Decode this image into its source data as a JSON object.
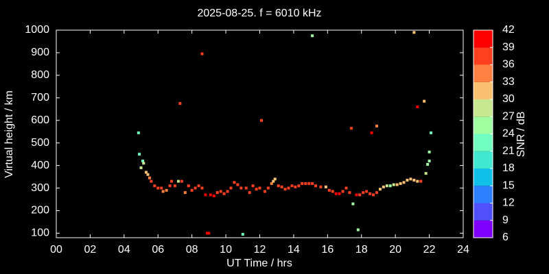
{
  "chart_data": {
    "type": "scatter",
    "title": "2025-08-25. f = 6010 kHz",
    "x_label": "UT Time / hrs",
    "y_label": "Virtual height / km",
    "xlim": [
      0,
      24
    ],
    "xticks": [
      {
        "value": 0,
        "label": "00"
      },
      {
        "value": 2,
        "label": "02"
      },
      {
        "value": 4,
        "label": "04"
      },
      {
        "value": 6,
        "label": "06"
      },
      {
        "value": 8,
        "label": "08"
      },
      10,
      12,
      14,
      16,
      18,
      20,
      22,
      24
    ],
    "ylim": [
      80,
      1000
    ],
    "yticks": [
      100,
      200,
      300,
      400,
      500,
      600,
      700,
      800,
      900,
      1000
    ],
    "colorbar": {
      "label": "SNR / dB",
      "ticks": [
        6,
        9,
        12,
        15,
        18,
        21,
        24,
        27,
        30,
        33,
        36,
        39,
        42
      ],
      "colors": [
        "#8000ff",
        "#5050ff",
        "#2a80ff",
        "#10c0e8",
        "#40e8d0",
        "#70ffc0",
        "#a0ffa0",
        "#c8e890",
        "#f8c070",
        "#ff8040",
        "#ff4020",
        "#ff0000"
      ]
    },
    "x": [
      4.85,
      4.9,
      5.0,
      5.1,
      5.15,
      5.3,
      5.4,
      5.5,
      5.6,
      5.8,
      6.0,
      6.2,
      6.3,
      6.5,
      6.7,
      6.8,
      7.0,
      7.2,
      7.4,
      7.3,
      7.6,
      7.8,
      8.0,
      8.2,
      8.4,
      8.6,
      8.6,
      8.8,
      8.9,
      9.0,
      9.1,
      9.3,
      9.5,
      9.7,
      9.9,
      10.1,
      10.3,
      10.5,
      10.7,
      10.9,
      11.0,
      11.2,
      11.4,
      11.6,
      11.8,
      12.0,
      12.1,
      12.3,
      12.5,
      12.7,
      12.8,
      12.9,
      13.1,
      13.3,
      13.5,
      13.7,
      13.9,
      14.1,
      14.3,
      14.5,
      14.7,
      14.9,
      15.1,
      15.1,
      15.3,
      15.6,
      15.9,
      16.1,
      16.3,
      16.5,
      16.7,
      16.9,
      17.1,
      17.3,
      17.4,
      17.5,
      17.7,
      17.8,
      17.9,
      18.1,
      18.3,
      18.5,
      18.6,
      18.7,
      18.9,
      18.9,
      19.1,
      19.3,
      19.5,
      19.7,
      19.9,
      20.1,
      20.3,
      20.5,
      20.7,
      20.9,
      21.1,
      21.1,
      21.3,
      21.3,
      21.5,
      21.7,
      21.8,
      21.9,
      22.0,
      22.0,
      22.1
    ],
    "values": [
      545,
      450,
      390,
      420,
      410,
      370,
      360,
      345,
      330,
      310,
      300,
      300,
      285,
      290,
      310,
      330,
      310,
      330,
      330,
      675,
      280,
      310,
      290,
      300,
      310,
      300,
      895,
      270,
      100,
      100,
      270,
      265,
      280,
      285,
      275,
      285,
      300,
      325,
      315,
      300,
      95,
      300,
      280,
      310,
      295,
      300,
      600,
      285,
      300,
      320,
      330,
      340,
      310,
      305,
      295,
      300,
      310,
      305,
      310,
      320,
      320,
      320,
      320,
      975,
      310,
      305,
      305,
      290,
      285,
      275,
      275,
      285,
      300,
      280,
      565,
      230,
      270,
      115,
      270,
      280,
      285,
      275,
      545,
      270,
      280,
      575,
      295,
      305,
      310,
      310,
      315,
      315,
      320,
      325,
      335,
      340,
      335,
      990,
      330,
      660,
      330,
      685,
      365,
      405,
      420,
      460,
      545
    ],
    "snr": [
      22,
      22,
      28,
      22,
      28,
      30,
      32,
      34,
      36,
      36,
      38,
      38,
      34,
      33,
      36,
      36,
      38,
      28,
      38,
      36,
      34,
      36,
      38,
      38,
      38,
      38,
      36,
      40,
      40,
      40,
      40,
      40,
      38,
      38,
      38,
      38,
      38,
      38,
      38,
      36,
      22,
      38,
      36,
      38,
      38,
      36,
      36,
      38,
      36,
      34,
      32,
      32,
      38,
      36,
      38,
      38,
      38,
      38,
      38,
      38,
      38,
      38,
      38,
      24,
      38,
      38,
      32,
      38,
      38,
      40,
      40,
      38,
      38,
      38,
      36,
      24,
      40,
      24,
      38,
      38,
      38,
      38,
      40,
      38,
      36,
      34,
      30,
      30,
      28,
      26,
      28,
      30,
      30,
      30,
      30,
      32,
      32,
      32,
      32,
      40,
      38,
      32,
      28,
      26,
      26,
      26,
      22
    ]
  }
}
